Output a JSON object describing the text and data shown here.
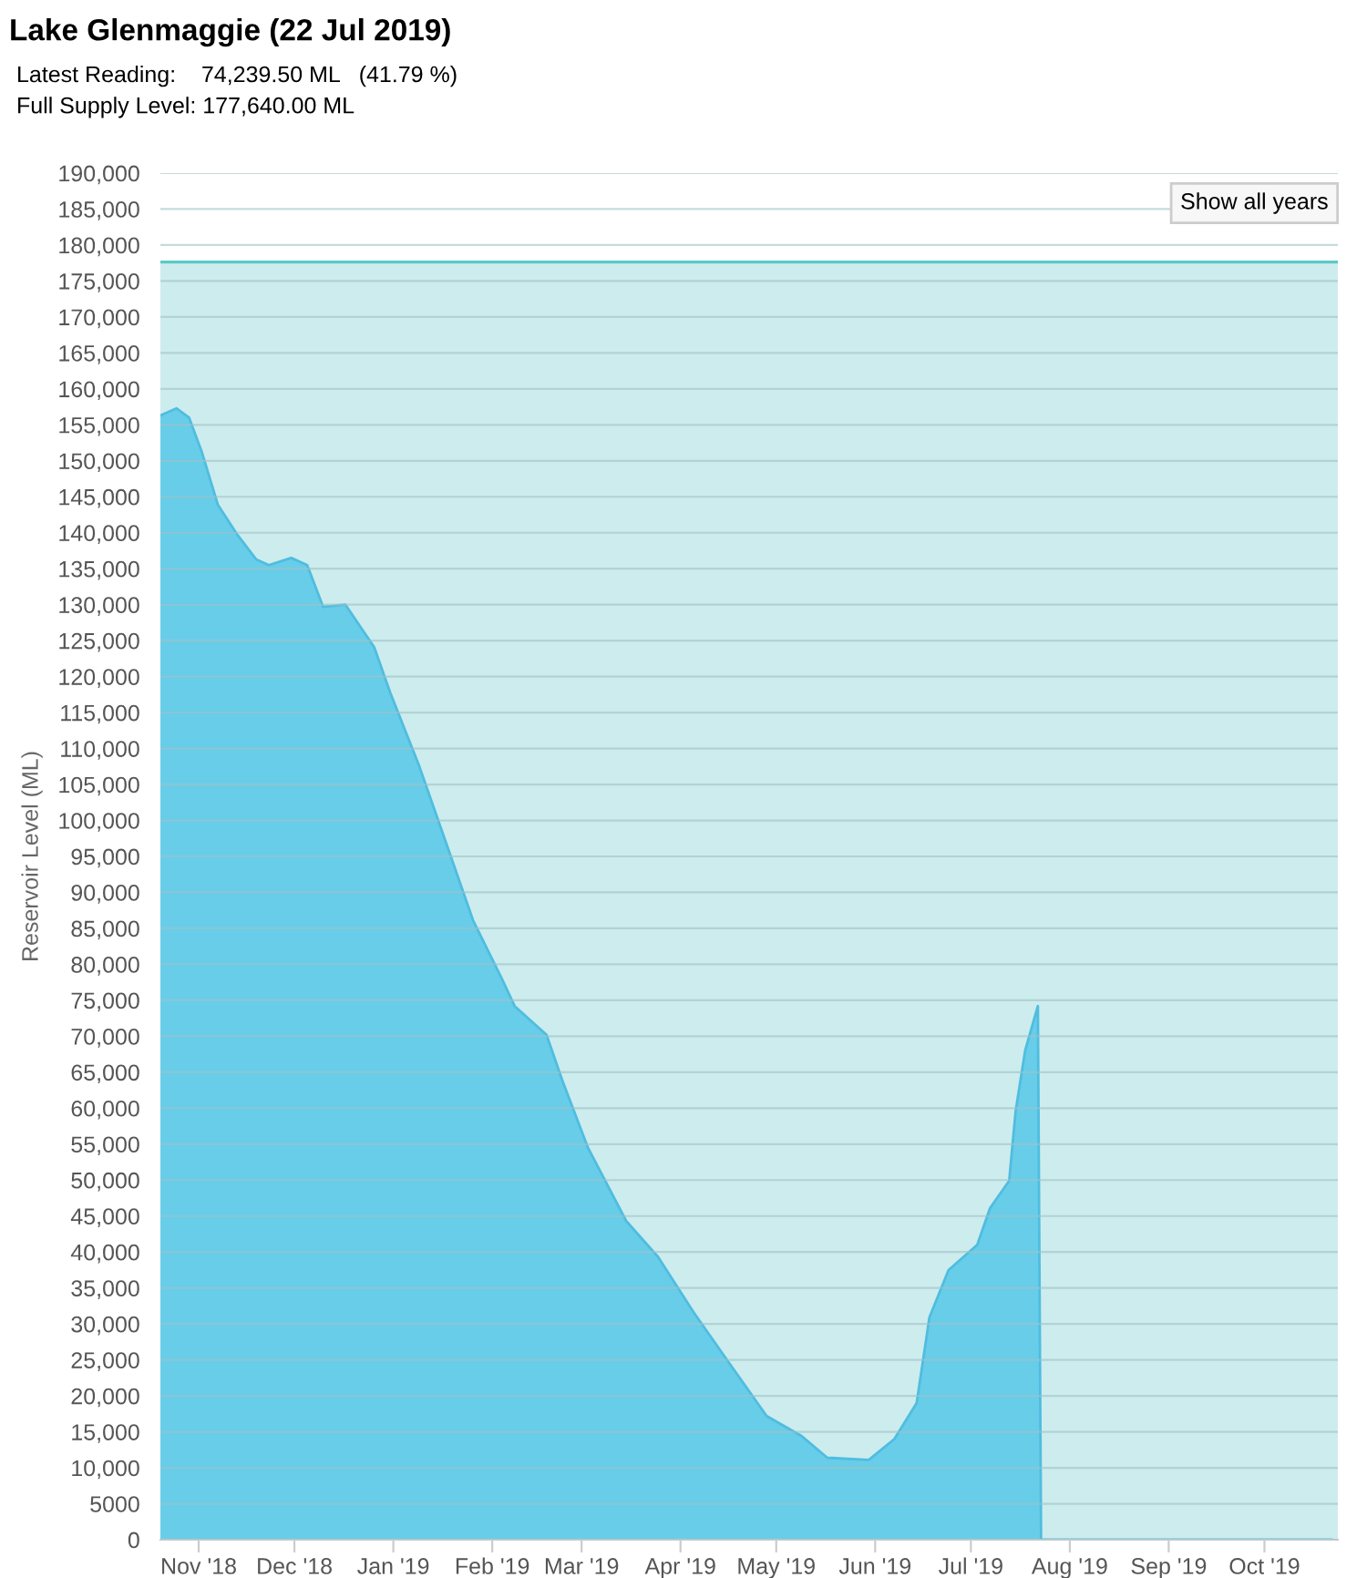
{
  "chart_data": {
    "type": "area",
    "title": "Lake Glenmaggie (22 Jul 2019)",
    "subtitle": "Latest Reading:    74,239.50 ML   (41.79 %)\nFull Supply Level: 177,640.00 ML",
    "ylabel": "Reservoir Level (ML)",
    "annotations": [
      "Show all years"
    ],
    "x": [
      "2018-10-20",
      "2018-10-25",
      "2018-10-29",
      "2018-11-02",
      "2018-11-07",
      "2018-11-13",
      "2018-11-19",
      "2018-11-23",
      "2018-11-30",
      "2018-12-05",
      "2018-12-10",
      "2018-12-17",
      "2018-12-26",
      "2018-12-31",
      "2019-01-09",
      "2019-01-18",
      "2019-01-26",
      "2019-02-04",
      "2019-02-08",
      "2019-02-18",
      "2019-02-23",
      "2019-03-03",
      "2019-03-15",
      "2019-03-25",
      "2019-04-05",
      "2019-04-17",
      "2019-04-28",
      "2019-05-09",
      "2019-05-17",
      "2019-05-30",
      "2019-06-07",
      "2019-06-14",
      "2019-06-18",
      "2019-06-24",
      "2019-07-03",
      "2019-07-07",
      "2019-07-13",
      "2019-07-15",
      "2019-07-18",
      "2019-07-22",
      "2019-07-23",
      "2019-10-22"
    ],
    "series": [
      {
        "color": "#62cbe9",
        "values": [
          156300,
          157300,
          156000,
          151200,
          143900,
          139800,
          136300,
          135500,
          136500,
          135500,
          129700,
          130000,
          124100,
          117800,
          107700,
          96300,
          86100,
          78000,
          74200,
          70200,
          63800,
          54500,
          44300,
          39300,
          31700,
          24100,
          17200,
          14400,
          11400,
          11100,
          14000,
          19000,
          30900,
          37500,
          41000,
          46100,
          49900,
          59500,
          68000,
          74200,
          0,
          0
        ]
      }
    ],
    "xlim": [
      "2018-10-20",
      "2019-10-24"
    ],
    "xticks": [
      {
        "value": "2018-11-01",
        "label": "Nov '18"
      },
      {
        "value": "2018-12-01",
        "label": "Dec '18"
      },
      {
        "value": "2019-01-01",
        "label": "Jan '19"
      },
      {
        "value": "2019-02-01",
        "label": "Feb '19"
      },
      {
        "value": "2019-03-01",
        "label": "Mar '19"
      },
      {
        "value": "2019-04-01",
        "label": "Apr '19"
      },
      {
        "value": "2019-05-01",
        "label": "May '19"
      },
      {
        "value": "2019-06-01",
        "label": "Jun '19"
      },
      {
        "value": "2019-07-01",
        "label": "Jul '19"
      },
      {
        "value": "2019-08-01",
        "label": "Aug '19"
      },
      {
        "value": "2019-09-01",
        "label": "Sep '19"
      },
      {
        "value": "2019-10-01",
        "label": "Oct '19"
      }
    ],
    "ylim": [
      0,
      190000
    ],
    "yticks": [
      0,
      5000,
      {
        "value": 10000,
        "label": "10,000"
      },
      {
        "value": 15000,
        "label": "15,000"
      },
      {
        "value": 20000,
        "label": "20,000"
      },
      {
        "value": 25000,
        "label": "25,000"
      },
      {
        "value": 30000,
        "label": "30,000"
      },
      {
        "value": 35000,
        "label": "35,000"
      },
      {
        "value": 40000,
        "label": "40,000"
      },
      {
        "value": 45000,
        "label": "45,000"
      },
      {
        "value": 50000,
        "label": "50,000"
      },
      {
        "value": 55000,
        "label": "55,000"
      },
      {
        "value": 60000,
        "label": "60,000"
      },
      {
        "value": 65000,
        "label": "65,000"
      },
      {
        "value": 70000,
        "label": "70,000"
      },
      {
        "value": 75000,
        "label": "75,000"
      },
      {
        "value": 80000,
        "label": "80,000"
      },
      {
        "value": 85000,
        "label": "85,000"
      },
      {
        "value": 90000,
        "label": "90,000"
      },
      {
        "value": 95000,
        "label": "95,000"
      },
      {
        "value": 100000,
        "label": "100,000"
      },
      {
        "value": 105000,
        "label": "105,000"
      },
      {
        "value": 110000,
        "label": "110,000"
      },
      {
        "value": 115000,
        "label": "115,000"
      },
      {
        "value": 120000,
        "label": "120,000"
      },
      {
        "value": 125000,
        "label": "125,000"
      },
      {
        "value": 130000,
        "label": "130,000"
      },
      {
        "value": 135000,
        "label": "135,000"
      },
      {
        "value": 140000,
        "label": "140,000"
      },
      {
        "value": 145000,
        "label": "145,000"
      },
      {
        "value": 150000,
        "label": "150,000"
      },
      {
        "value": 155000,
        "label": "155,000"
      },
      {
        "value": 160000,
        "label": "160,000"
      },
      {
        "value": 165000,
        "label": "165,000"
      },
      {
        "value": 170000,
        "label": "170,000"
      },
      {
        "value": 175000,
        "label": "175,000"
      },
      {
        "value": 180000,
        "label": "180,000"
      },
      {
        "value": 185000,
        "label": "185,000"
      },
      {
        "value": 190000,
        "label": "190,000"
      }
    ],
    "bands": [
      {
        "axis": "y",
        "from": 0,
        "to": 177640,
        "color": "#cdeced"
      }
    ],
    "ref_lines": [
      {
        "axis": "y",
        "value": 177640,
        "color": "#5ec9c9"
      }
    ],
    "grid": "y"
  }
}
